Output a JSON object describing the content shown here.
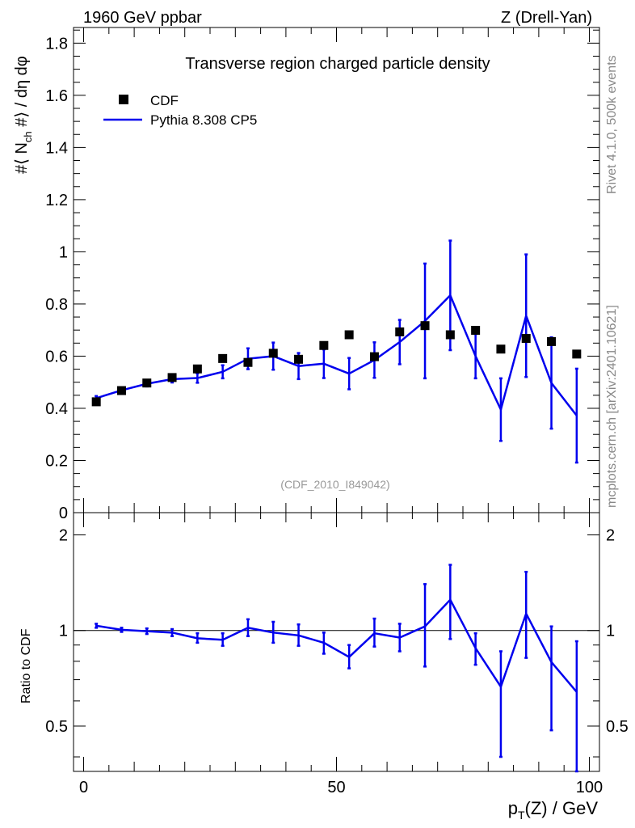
{
  "header": {
    "left": "1960 GeV ppbar",
    "right": "Z (Drell-Yan)"
  },
  "side": {
    "rivet": "Rivet 4.1.0,  500k events",
    "mcplots": "mcplots.cern.ch [arXiv:2401.10621]"
  },
  "colors": {
    "data": "#000000",
    "mc": "#0000ee",
    "watermark": "#999999",
    "side_text": "#888888"
  },
  "chart_data": [
    {
      "type": "scatter",
      "title": "Transverse region charged particle density",
      "ylabel": "#⟨ N_ch #⟩ / dη dφ",
      "ylabel_parts": {
        "pre": "#⟨ N",
        "sub": "ch",
        "post": " #⟩ / dη dφ"
      },
      "xlim": [
        -2,
        102
      ],
      "ylim": [
        0,
        1.86
      ],
      "yticks": [
        0,
        0.2,
        0.4,
        0.6,
        0.8,
        1,
        1.2,
        1.4,
        1.6,
        1.8
      ],
      "ytick_labels": [
        "0",
        "0.2",
        "0.4",
        "0.6",
        "0.8",
        "1",
        "1.2",
        "1.4",
        "1.6",
        "1.8"
      ],
      "watermark": "(CDF_2010_I849042)",
      "legend": {
        "position": "top-left",
        "entries": [
          {
            "label": "CDF",
            "style": "marker"
          },
          {
            "label": "Pythia 8.308 CP5",
            "style": "line"
          }
        ]
      },
      "x": [
        2.5,
        7.5,
        12.5,
        17.5,
        22.5,
        27.5,
        32.5,
        37.5,
        42.5,
        47.5,
        52.5,
        57.5,
        62.5,
        67.5,
        72.5,
        77.5,
        82.5,
        87.5,
        92.5,
        97.5
      ],
      "series": [
        {
          "name": "CDF",
          "values": [
            0.425,
            0.468,
            0.497,
            0.518,
            0.551,
            0.591,
            0.576,
            0.611,
            0.588,
            0.641,
            0.682,
            0.598,
            0.693,
            0.717,
            0.682,
            0.699,
            0.627,
            0.668,
            0.656,
            0.608
          ]
        },
        {
          "name": "Pythia 8.308 CP5",
          "values": [
            0.439,
            0.469,
            0.494,
            0.512,
            0.516,
            0.54,
            0.59,
            0.6,
            0.562,
            0.571,
            0.533,
            0.585,
            0.654,
            0.735,
            0.833,
            0.6,
            0.395,
            0.755,
            0.497,
            0.372
          ],
          "errors": [
            0.008,
            0.007,
            0.01,
            0.013,
            0.018,
            0.025,
            0.04,
            0.052,
            0.05,
            0.055,
            0.06,
            0.068,
            0.085,
            0.22,
            0.21,
            0.085,
            0.12,
            0.235,
            0.175,
            0.18
          ]
        }
      ]
    },
    {
      "type": "line",
      "ylabel": "Ratio to CDF",
      "xlabel": "p_T(Z) / GeV",
      "xlabel_parts": {
        "pre": "p",
        "sub": "T",
        "post": "(Z) / GeV"
      },
      "xlim": [
        -2,
        102
      ],
      "ylim": [
        0.36,
        2.35
      ],
      "yscale": "log",
      "reference_line": 1,
      "xticks": [
        0,
        50,
        100
      ],
      "xtick_labels": [
        "0",
        "50",
        "100"
      ],
      "yticks": [
        0.5,
        1,
        2
      ],
      "ytick_labels": [
        "0.5",
        "1",
        "2"
      ],
      "x": [
        2.5,
        7.5,
        12.5,
        17.5,
        22.5,
        27.5,
        32.5,
        37.5,
        42.5,
        47.5,
        52.5,
        57.5,
        62.5,
        67.5,
        72.5,
        77.5,
        82.5,
        87.5,
        92.5,
        97.5
      ],
      "series": [
        {
          "name": "Pythia 8.308 CP5 / CDF",
          "values": [
            1.035,
            1.005,
            0.995,
            0.985,
            0.945,
            0.935,
            1.02,
            0.985,
            0.965,
            0.915,
            0.825,
            0.98,
            0.95,
            1.03,
            1.25,
            0.88,
            0.665,
            1.13,
            0.795,
            0.64
          ],
          "err_lo": [
            0.015,
            0.015,
            0.02,
            0.025,
            0.03,
            0.04,
            0.06,
            0.07,
            0.07,
            0.07,
            0.065,
            0.09,
            0.09,
            0.26,
            0.31,
            0.1,
            0.265,
            0.31,
            0.31,
            0.28
          ],
          "err_hi": [
            0.015,
            0.015,
            0.02,
            0.025,
            0.035,
            0.045,
            0.065,
            0.08,
            0.08,
            0.07,
            0.075,
            0.11,
            0.1,
            0.37,
            0.36,
            0.1,
            0.195,
            0.4,
            0.235,
            0.285
          ]
        }
      ]
    }
  ]
}
